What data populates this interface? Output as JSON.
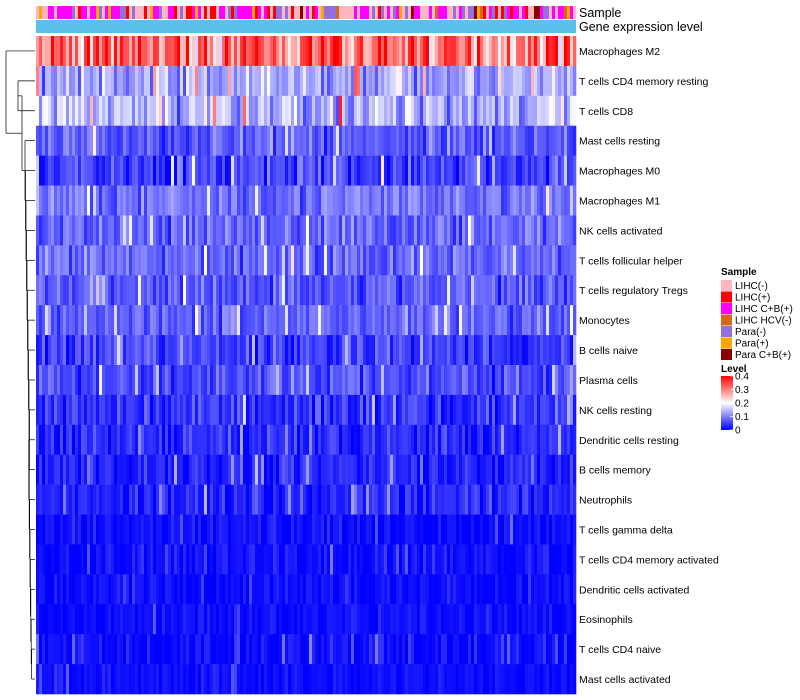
{
  "chart_data": {
    "type": "heatmap",
    "title": "",
    "annotation_tracks": [
      {
        "name": "Sample",
        "label": "Sample"
      },
      {
        "name": "Gene expression level",
        "label": "Gene expression level",
        "color": "#5BC0EB"
      }
    ],
    "rows": [
      {
        "label": "Macrophages M2",
        "mean": 0.3,
        "spread": 0.1
      },
      {
        "label": "T cells CD4 memory resting",
        "mean": 0.13,
        "spread": 0.07
      },
      {
        "label": "T cells CD8",
        "mean": 0.14,
        "spread": 0.08
      },
      {
        "label": "Mast cells resting",
        "mean": 0.07,
        "spread": 0.05
      },
      {
        "label": "Macrophages M0",
        "mean": 0.05,
        "spread": 0.06
      },
      {
        "label": "Macrophages M1",
        "mean": 0.09,
        "spread": 0.05
      },
      {
        "label": "NK cells activated",
        "mean": 0.08,
        "spread": 0.05
      },
      {
        "label": "T cells follicular helper",
        "mean": 0.08,
        "spread": 0.05
      },
      {
        "label": "T cells regulatory  Tregs",
        "mean": 0.07,
        "spread": 0.05
      },
      {
        "label": "Monocytes",
        "mean": 0.08,
        "spread": 0.05
      },
      {
        "label": "B cells naive",
        "mean": 0.05,
        "spread": 0.05
      },
      {
        "label": "Plasma cells",
        "mean": 0.06,
        "spread": 0.05
      },
      {
        "label": "NK cells resting",
        "mean": 0.04,
        "spread": 0.05
      },
      {
        "label": "Dendritic cells resting",
        "mean": 0.03,
        "spread": 0.04
      },
      {
        "label": "B cells memory",
        "mean": 0.03,
        "spread": 0.04
      },
      {
        "label": "Neutrophils",
        "mean": 0.03,
        "spread": 0.04
      },
      {
        "label": "T cells gamma delta",
        "mean": 0.01,
        "spread": 0.03
      },
      {
        "label": "T cells CD4 memory activated",
        "mean": 0.01,
        "spread": 0.03
      },
      {
        "label": "Dendritic cells activated",
        "mean": 0.01,
        "spread": 0.02
      },
      {
        "label": "Eosinophils",
        "mean": 0.01,
        "spread": 0.02
      },
      {
        "label": "T cells CD4 naive",
        "mean": 0.01,
        "spread": 0.03
      },
      {
        "label": "Mast cells activated",
        "mean": 0.01,
        "spread": 0.02
      }
    ],
    "n_columns": 180,
    "sample_legend": {
      "title": "Sample",
      "entries": [
        {
          "label": "LIHC(-)",
          "color": "#FFB6C1"
        },
        {
          "label": "LIHC(+)",
          "color": "#FF0000"
        },
        {
          "label": "LIHC C+B(+)",
          "color": "#FF00FF"
        },
        {
          "label": "LIHC HCV(-)",
          "color": "#D2691E"
        },
        {
          "label": "Para(-)",
          "color": "#9370DB"
        },
        {
          "label": "Para(+)",
          "color": "#FFA500"
        },
        {
          "label": "Para C+B(+)",
          "color": "#8B0000"
        }
      ]
    },
    "level_legend": {
      "title": "Level",
      "range": [
        0,
        0.4
      ],
      "ticks": [
        "0.4",
        "0.3",
        "0.2",
        "0.1",
        "0"
      ],
      "colors": [
        "#0000FF",
        "#FFFFFF",
        "#FF0000"
      ]
    }
  }
}
